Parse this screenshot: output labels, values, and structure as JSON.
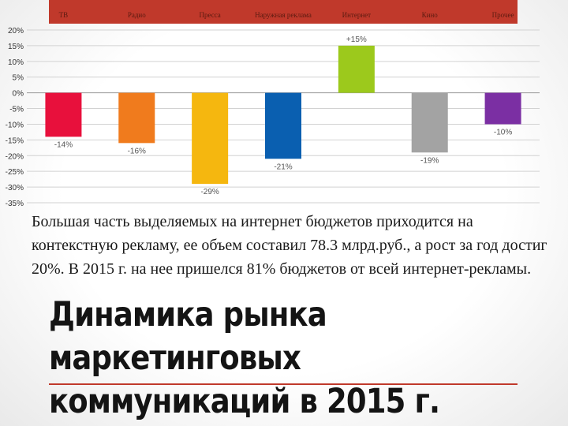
{
  "chart_data": {
    "type": "bar",
    "categories": [
      "ТВ",
      "Радио",
      "Пресса",
      "Наружная реклама",
      "Интернет",
      "Кино",
      "Прочее"
    ],
    "values": [
      -14,
      -16,
      -29,
      -21,
      15,
      -19,
      -10
    ],
    "data_labels": [
      "-14%",
      "-16%",
      "-29%",
      "-21%",
      "+15%",
      "-19%",
      "-10%"
    ],
    "colors": [
      "#e8103c",
      "#f07b1d",
      "#f5b70f",
      "#0a5fb0",
      "#9cc91c",
      "#a3a3a3",
      "#7b2fa3"
    ],
    "ylim": [
      -35,
      20
    ],
    "y_ticks": [
      20,
      15,
      10,
      5,
      0,
      -5,
      -10,
      -15,
      -20,
      -25,
      -30,
      -35
    ],
    "y_tick_format": "%",
    "grid": true,
    "legend": "none"
  },
  "caption": "Большая часть выделяемых на интернет бюджетов приходится на контекстную рекламу, ее объем составил 78.3 млрд.руб., а рост за год достиг 20%. В 2015 г. на нее пришелся 81% бюджетов от всей интернет-рекламы.",
  "heading": {
    "line1": "Динамика рынка",
    "line2": "маркетинговых",
    "line3": "коммуникаций в 2015 г."
  },
  "accent_color": "#c0392b"
}
